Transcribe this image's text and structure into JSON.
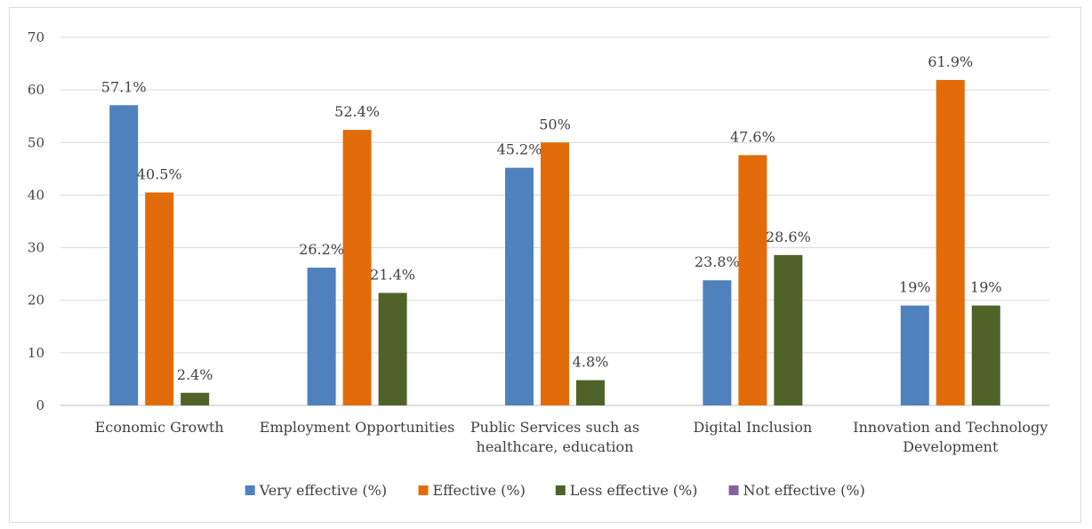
{
  "chart_data": {
    "type": "bar",
    "title": "",
    "xlabel": "",
    "ylabel": "",
    "ylim": [
      0,
      70
    ],
    "yticks": [
      0,
      10,
      20,
      30,
      40,
      50,
      60,
      70
    ],
    "grid": true,
    "legend_position": "bottom",
    "categories": [
      [
        "Economic Growth"
      ],
      [
        "Employment Opportunities"
      ],
      [
        "Public Services such as",
        "healthcare, education"
      ],
      [
        "Digital Inclusion"
      ],
      [
        "Innovation and Technology",
        "Development"
      ]
    ],
    "series": [
      {
        "name": "Very effective (%)",
        "color": "#4f81bd",
        "values": [
          57.1,
          26.2,
          45.2,
          23.8,
          19
        ],
        "labels": [
          "57.1%",
          "26.2%",
          "45.2%",
          "23.8%",
          "19%"
        ]
      },
      {
        "name": "Effective (%)",
        "color": "#e36c0a",
        "values": [
          40.5,
          52.4,
          50,
          47.6,
          61.9
        ],
        "labels": [
          "40.5%",
          "52.4%",
          "50%",
          "47.6%",
          "61.9%"
        ]
      },
      {
        "name": "Less effective (%)",
        "color": "#4f6228",
        "values": [
          2.4,
          21.4,
          4.8,
          28.6,
          19
        ],
        "labels": [
          "2.4%",
          "21.4%",
          "4.8%",
          "28.6%",
          "19%"
        ]
      },
      {
        "name": "Not effective (%)",
        "color": "#8064a2",
        "values": [
          0,
          0,
          0,
          0,
          0
        ],
        "labels": []
      }
    ]
  }
}
